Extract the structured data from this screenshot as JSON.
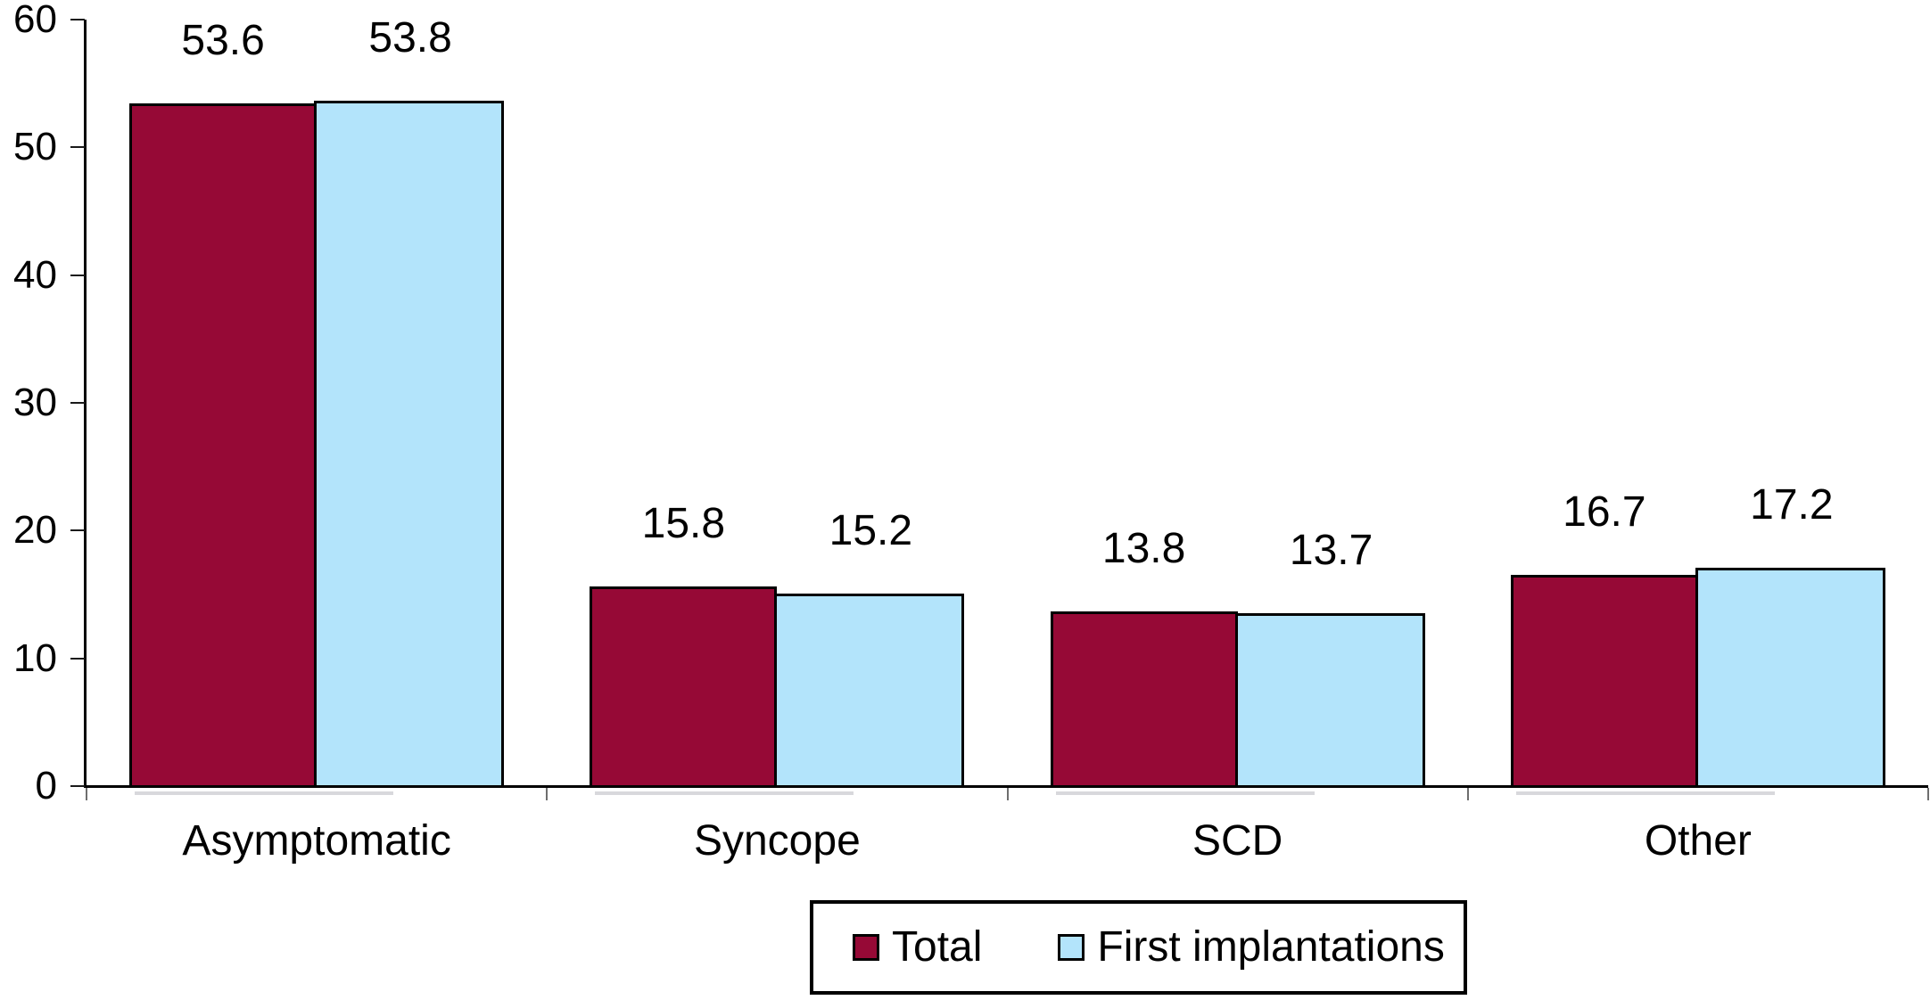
{
  "chart_data": {
    "type": "bar",
    "title": "",
    "xlabel": "",
    "ylabel": "",
    "categories": [
      "Asymptomatic",
      "Syncope",
      "SCD",
      "Other"
    ],
    "series": [
      {
        "name": "Total",
        "color": "#960936",
        "values": [
          53.6,
          15.8,
          13.8,
          16.7
        ]
      },
      {
        "name": "First implantations",
        "color": "#B3E4FB",
        "values": [
          53.8,
          15.2,
          13.7,
          17.2
        ]
      }
    ],
    "ylim": [
      0,
      60
    ],
    "yticks": [
      0,
      10,
      20,
      30,
      40,
      50,
      60
    ],
    "grid": false,
    "legend_position": "bottom",
    "bar_value_labels": true
  },
  "colors": {
    "background": "#FFFFFF",
    "axis": "#000000",
    "bar_border": "#000000",
    "text": "#000000"
  }
}
